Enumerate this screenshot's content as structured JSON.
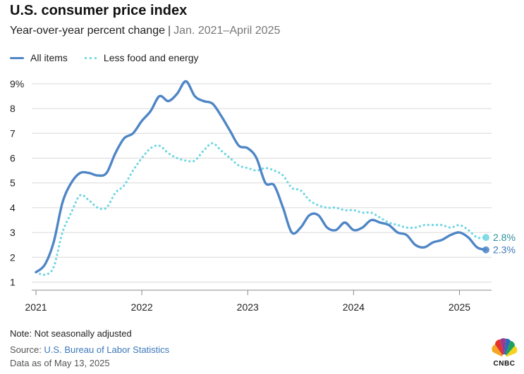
{
  "title": "U.S. consumer price index",
  "subtitle": {
    "main": "Year-over-year percent change",
    "separator": "|",
    "range": "Jan. 2021–April 2025"
  },
  "legend": {
    "all_items": "All items",
    "core": "Less food and energy"
  },
  "footer": {
    "note": "Note: Not seasonally adjusted",
    "source_prefix": "Source: ",
    "source_link": "U.S. Bureau of Labor Statistics",
    "as_of": "Data as of May 13, 2025"
  },
  "logo": {
    "text": "CNBC",
    "icon": "nbc-peacock-icon"
  },
  "colors": {
    "all_items": "#4f86c6",
    "core": "#6fd6e3",
    "grid": "#d9d9d9",
    "axis": "#888888"
  },
  "chart_data": {
    "type": "line",
    "title": "U.S. consumer price index",
    "ylim": [
      1,
      9
    ],
    "yticks": [
      1,
      2,
      3,
      4,
      5,
      6,
      7,
      8,
      9
    ],
    "ytick_labels": [
      "1",
      "2",
      "3",
      "4",
      "5",
      "6",
      "7",
      "8",
      "9%"
    ],
    "xlim": [
      "2021-01",
      "2025-04"
    ],
    "xticks": [
      "2021",
      "2022",
      "2023",
      "2024",
      "2025"
    ],
    "grid": true,
    "legend_position": "top-left",
    "x": [
      "2021-01",
      "2021-02",
      "2021-03",
      "2021-04",
      "2021-05",
      "2021-06",
      "2021-07",
      "2021-08",
      "2021-09",
      "2021-10",
      "2021-11",
      "2021-12",
      "2022-01",
      "2022-02",
      "2022-03",
      "2022-04",
      "2022-05",
      "2022-06",
      "2022-07",
      "2022-08",
      "2022-09",
      "2022-10",
      "2022-11",
      "2022-12",
      "2023-01",
      "2023-02",
      "2023-03",
      "2023-04",
      "2023-05",
      "2023-06",
      "2023-07",
      "2023-08",
      "2023-09",
      "2023-10",
      "2023-11",
      "2023-12",
      "2024-01",
      "2024-02",
      "2024-03",
      "2024-04",
      "2024-05",
      "2024-06",
      "2024-07",
      "2024-08",
      "2024-09",
      "2024-10",
      "2024-11",
      "2024-12",
      "2025-01",
      "2025-02",
      "2025-03",
      "2025-04"
    ],
    "series": [
      {
        "name": "All items",
        "style": "solid",
        "values": [
          1.4,
          1.7,
          2.6,
          4.2,
          5.0,
          5.4,
          5.4,
          5.3,
          5.4,
          6.2,
          6.8,
          7.0,
          7.5,
          7.9,
          8.5,
          8.3,
          8.6,
          9.1,
          8.5,
          8.3,
          8.2,
          7.7,
          7.1,
          6.5,
          6.4,
          6.0,
          5.0,
          4.9,
          4.0,
          3.0,
          3.2,
          3.7,
          3.7,
          3.2,
          3.1,
          3.4,
          3.1,
          3.2,
          3.5,
          3.4,
          3.3,
          3.0,
          2.9,
          2.5,
          2.4,
          2.6,
          2.7,
          2.9,
          3.0,
          2.8,
          2.4,
          2.3
        ],
        "end_label": "2.3%"
      },
      {
        "name": "Less food and energy",
        "style": "dotted",
        "values": [
          1.4,
          1.3,
          1.6,
          3.0,
          3.8,
          4.5,
          4.3,
          4.0,
          4.0,
          4.6,
          4.9,
          5.5,
          6.0,
          6.4,
          6.5,
          6.2,
          6.0,
          5.9,
          5.9,
          6.3,
          6.6,
          6.3,
          6.0,
          5.7,
          5.6,
          5.5,
          5.6,
          5.5,
          5.3,
          4.8,
          4.7,
          4.3,
          4.1,
          4.0,
          4.0,
          3.9,
          3.9,
          3.8,
          3.8,
          3.6,
          3.4,
          3.3,
          3.2,
          3.2,
          3.3,
          3.3,
          3.3,
          3.2,
          3.3,
          3.1,
          2.8,
          2.8
        ],
        "end_label": "2.8%"
      }
    ]
  }
}
